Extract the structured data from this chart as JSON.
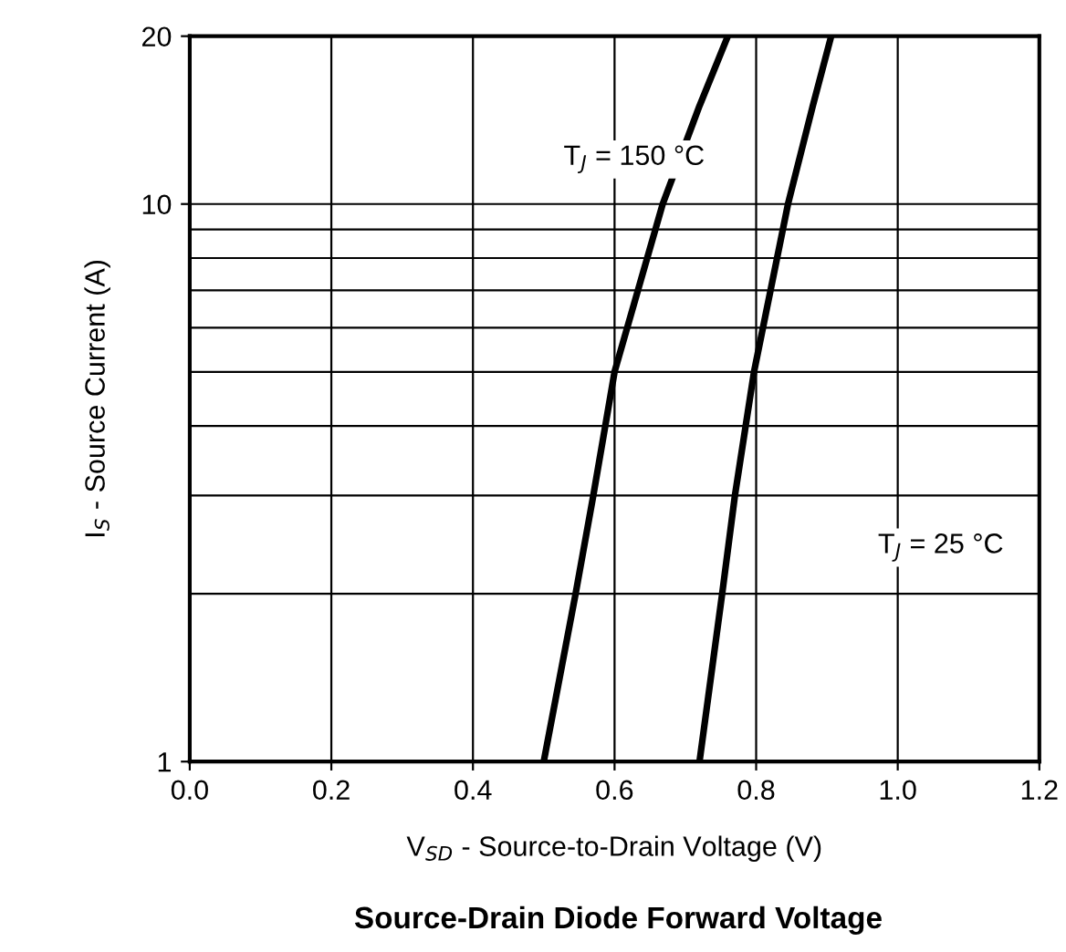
{
  "chart_data": {
    "type": "line",
    "title": "Source-Drain Diode Forward Voltage",
    "xlabel": "V$_{SD}$ - Source-to-Drain Voltage (V)",
    "ylabel": "I$_{S}$ - Source Current (A)",
    "series": [
      {
        "color": "#000000",
        "x": [
          0.5,
          0.545,
          0.57,
          0.6,
          0.668,
          0.72,
          0.76
        ],
        "values": [
          1,
          2,
          3,
          5,
          10,
          15,
          20
        ]
      },
      {
        "color": "#000000",
        "x": [
          0.72,
          0.752,
          0.77,
          0.797,
          0.845,
          0.88,
          0.906
        ],
        "values": [
          1,
          2,
          3,
          5,
          10,
          15,
          20
        ]
      }
    ],
    "annotations": [
      "T$_{J}$ = 150 °C",
      "T$_{J}$ = 25 °C"
    ],
    "xlim": [
      0,
      1.2
    ],
    "xticks": [
      {
        "value": 0,
        "label": "0.0"
      },
      {
        "value": 0.2,
        "label": "0.2"
      },
      {
        "value": 0.4,
        "label": "0.4"
      },
      {
        "value": 0.6,
        "label": "0.6"
      },
      {
        "value": 0.8,
        "label": "0.8"
      },
      {
        "value": 1.0,
        "label": "1.0"
      },
      {
        "value": 1.2,
        "label": "1.2"
      }
    ],
    "ylim": [
      1,
      20
    ],
    "yticks": [
      1,
      10,
      20
    ],
    "log": true,
    "grid": true,
    "marker": "none",
    "line_style": "solid",
    "legend": false
  }
}
